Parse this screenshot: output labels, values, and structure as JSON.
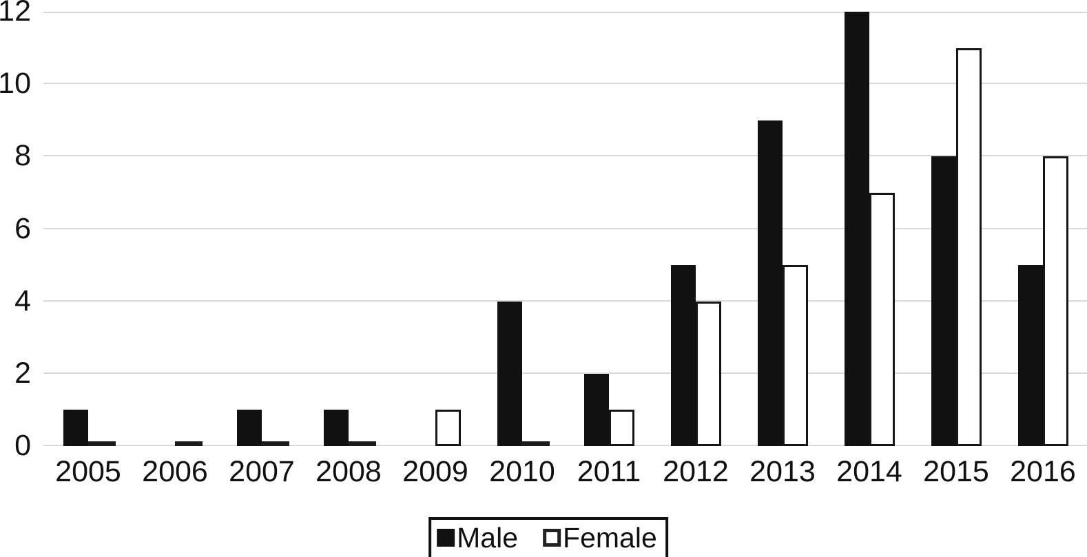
{
  "chart_data": {
    "type": "bar",
    "title": "",
    "xlabel": "",
    "ylabel": "",
    "categories": [
      "2005",
      "2006",
      "2007",
      "2008",
      "2009",
      "2010",
      "2011",
      "2012",
      "2013",
      "2014",
      "2015",
      "2016"
    ],
    "series": [
      {
        "name": "Male",
        "style": "solid-fill",
        "color": "#111111",
        "values": [
          1,
          0,
          1,
          1,
          0,
          4,
          2,
          5,
          9,
          12,
          8,
          5
        ]
      },
      {
        "name": "Female",
        "style": "outlined-white",
        "color": "#ffffff",
        "border_color": "#161616",
        "values": [
          0,
          0,
          0,
          0,
          1,
          0,
          1,
          4,
          5,
          7,
          11,
          8
        ]
      }
    ],
    "ylim": [
      0,
      12
    ],
    "yticks": [
      0,
      2,
      4,
      6,
      8,
      10,
      12
    ],
    "grid": "horizontal",
    "gridline_color": "#d9d9d9",
    "background": "#ffffff",
    "legend_position": "bottom-center",
    "legend_entries": [
      "Male",
      "Female"
    ]
  }
}
